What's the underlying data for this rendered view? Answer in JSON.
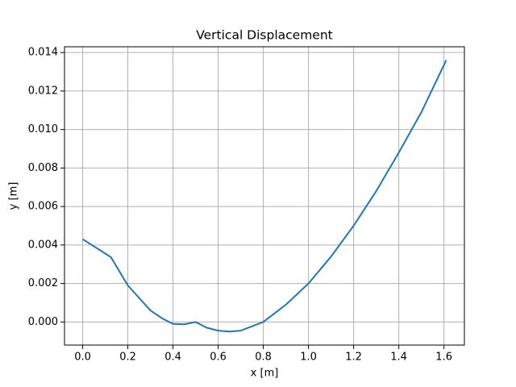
{
  "chart_data": {
    "type": "line",
    "title": "Vertical Displacement",
    "xlabel": "x [m]",
    "ylabel": "y [m]",
    "x": [
      0,
      0.125,
      0.2,
      0.3,
      0.35,
      0.4,
      0.45,
      0.5,
      0.55,
      0.6,
      0.65,
      0.7,
      0.8,
      0.9,
      1.0,
      1.1,
      1.2,
      1.3,
      1.4,
      1.5,
      1.61
    ],
    "values": [
      0.0043,
      0.00337,
      0.0019,
      0.0006,
      0.0002,
      -0.0001,
      -0.00012,
      0.0,
      -0.0003,
      -0.00045,
      -0.0005,
      -0.00045,
      0.0,
      0.0009,
      0.002,
      0.0034,
      0.005,
      0.0068,
      0.0088,
      0.0109,
      0.0136
    ],
    "color": "#1f77b4",
    "xlim": [
      -0.0805,
      1.6905
    ],
    "ylim": [
      -0.0012,
      0.0143
    ],
    "xticks": [
      {
        "value": 0,
        "label": "0.0"
      },
      {
        "value": 0.2,
        "label": "0.2"
      },
      {
        "value": 0.4,
        "label": "0.4"
      },
      {
        "value": 0.6,
        "label": "0.6"
      },
      {
        "value": 0.8,
        "label": "0.8"
      },
      {
        "value": 1.0,
        "label": "1.0"
      },
      {
        "value": 1.2,
        "label": "1.2"
      },
      {
        "value": 1.4,
        "label": "1.4"
      },
      {
        "value": 1.6,
        "label": "1.6"
      }
    ],
    "yticks": [
      {
        "value": 0,
        "label": "0.000"
      },
      {
        "value": 0.002,
        "label": "0.002"
      },
      {
        "value": 0.004,
        "label": "0.004"
      },
      {
        "value": 0.006,
        "label": "0.006"
      },
      {
        "value": 0.008,
        "label": "0.008"
      },
      {
        "value": 0.01,
        "label": "0.010"
      },
      {
        "value": 0.012,
        "label": "0.012"
      },
      {
        "value": 0.014,
        "label": "0.014"
      }
    ],
    "grid": true
  }
}
